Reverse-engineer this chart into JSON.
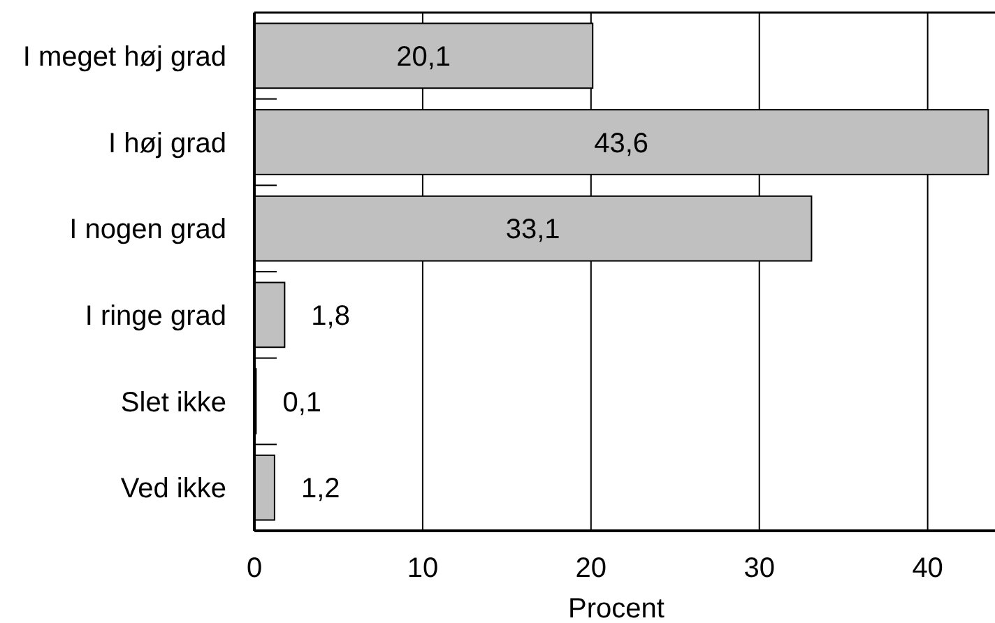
{
  "chart_data": {
    "type": "bar",
    "orientation": "horizontal",
    "categories": [
      "I meget høj grad",
      "I høj grad",
      "I nogen grad",
      "I ringe grad",
      "Slet ikke",
      "Ved ikke"
    ],
    "values": [
      20.1,
      43.6,
      33.1,
      1.8,
      0.1,
      1.2
    ],
    "value_labels": [
      "20,1",
      "43,6",
      "33,1",
      "1,8",
      "0,1",
      "1,2"
    ],
    "color": "#c0c0c0",
    "xlabel": "Procent",
    "xlim": [
      0,
      44
    ],
    "xticks": [
      0,
      10,
      20,
      30,
      40
    ],
    "grid": "x"
  }
}
